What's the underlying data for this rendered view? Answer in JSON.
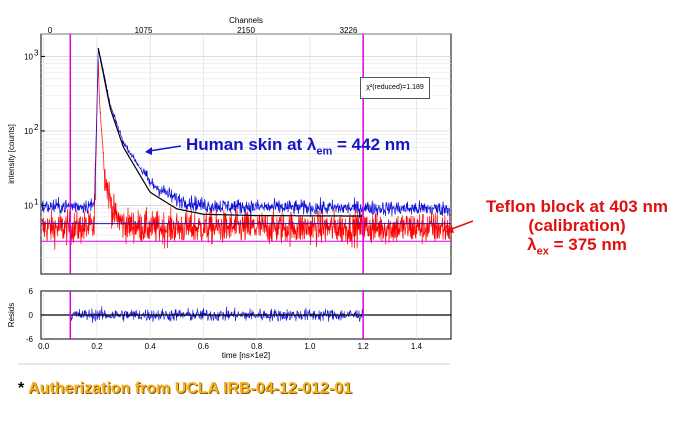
{
  "colors": {
    "skin": "#1010d8",
    "teflon": "#ff0000",
    "fit": "#000000",
    "cursor": "#e000e0",
    "annotation_blue": "#1515c8",
    "annotation_red": "#e01010",
    "footer": "#f7b020"
  },
  "chart_data": [
    {
      "type": "line",
      "panel": "decay",
      "top_axis": {
        "title": "Channels",
        "ticks": [
          "0",
          "1075",
          "2150",
          "3226"
        ]
      },
      "ylabel": "intensity [counts]",
      "yscale": "log",
      "ylim": [
        1.2,
        2000
      ],
      "xlim": [
        -0.01,
        1.53
      ],
      "y_ticks": [
        {
          "value": 10,
          "base": "10",
          "exp": "1"
        },
        {
          "value": 100,
          "base": "10",
          "exp": "2"
        },
        {
          "value": 1000,
          "base": "10",
          "exp": "3"
        }
      ],
      "cursors_x": [
        0.1,
        1.2
      ],
      "baseline_lines_y": [
        5.7,
        3.3
      ],
      "series": [
        {
          "name": "Human skin at λem = 442 nm",
          "color_key": "skin",
          "x": [
            0.0,
            0.19,
            0.2,
            0.205,
            0.21,
            0.25,
            0.3,
            0.4,
            0.5,
            0.6,
            0.8,
            1.0,
            1.2,
            1.5
          ],
          "y": [
            9.5,
            10,
            200,
            1400,
            1100,
            220,
            70,
            20,
            12,
            10,
            9.5,
            9.3,
            9.2,
            9.0
          ]
        },
        {
          "name": "Teflon block at 403 nm (calibration)",
          "color_key": "teflon",
          "x": [
            0.0,
            0.19,
            0.2,
            0.205,
            0.21,
            0.23,
            0.26,
            0.3,
            0.4,
            1.5
          ],
          "y": [
            5,
            5,
            150,
            1000,
            250,
            25,
            8,
            5.5,
            5,
            5
          ]
        },
        {
          "name": "fit",
          "color_key": "fit",
          "x": [
            0.205,
            0.25,
            0.3,
            0.4,
            0.5,
            0.6,
            0.8,
            1.2
          ],
          "y": [
            1300,
            200,
            60,
            15,
            9,
            7.6,
            7.3,
            7.2
          ]
        }
      ],
      "fit_box": "χ²(reduced)=1.189"
    },
    {
      "type": "line",
      "panel": "residuals",
      "ylabel": "Resids",
      "ylim": [
        -6,
        6
      ],
      "y_ticks": [
        "6",
        "0",
        "-6"
      ],
      "xlabel": "time [ns×1e2]",
      "x_ticks": [
        "0.0",
        "0.2",
        "0.4",
        "0.6",
        "0.8",
        "1.0",
        "1.2",
        "1.4"
      ],
      "xlim": [
        -0.01,
        1.53
      ],
      "residual_range_x": [
        0.1,
        1.2
      ],
      "residual_spread": 2
    }
  ],
  "annotations": {
    "skin": {
      "prefix": "Human skin at ",
      "lambda": "λ",
      "sub": "em",
      "suffix": " = 442 nm"
    },
    "teflon_line1": "Teflon block at 403 nm",
    "teflon_line2": "(calibration)",
    "teflon_line3": {
      "lambda": "λ",
      "sub": "ex",
      "suffix": " = 375 nm"
    }
  },
  "footer": {
    "star": "*",
    "text": "Autherization from UCLA IRB-04-12-012-01"
  }
}
